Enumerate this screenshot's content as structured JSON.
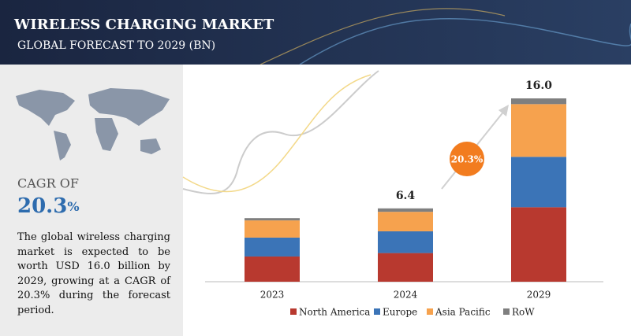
{
  "header": {
    "title": "WIRELESS CHARGING MARKET",
    "subtitle": "GLOBAL FORECAST TO 2029 (BN)"
  },
  "cagr": {
    "label": "CAGR OF",
    "value": 20.3,
    "unit": "%",
    "badge": "20.3%"
  },
  "summary": "The global wireless charging market is expected to be worth USD 16.0 billion by 2029, growing at a CAGR of 20.3% during the forecast period.",
  "chart_data": {
    "type": "stacked-bar",
    "categories": [
      "2023",
      "2024",
      "2029"
    ],
    "series": [
      {
        "name": "North America",
        "color": "#b8392f",
        "values": [
          2.2,
          2.5,
          6.5
        ]
      },
      {
        "name": "Europe",
        "color": "#3b74b7",
        "values": [
          1.65,
          1.9,
          4.4
        ]
      },
      {
        "name": "Asia Pacific",
        "color": "#f6a24e",
        "values": [
          1.5,
          1.7,
          4.6
        ]
      },
      {
        "name": "RoW",
        "color": "#7f7f7f",
        "values": [
          0.2,
          0.3,
          0.5
        ]
      }
    ],
    "totals": {
      "values": [
        null,
        6.4,
        16.0
      ],
      "value_labels": [
        null,
        "6.4",
        "16.0"
      ]
    }
  }
}
